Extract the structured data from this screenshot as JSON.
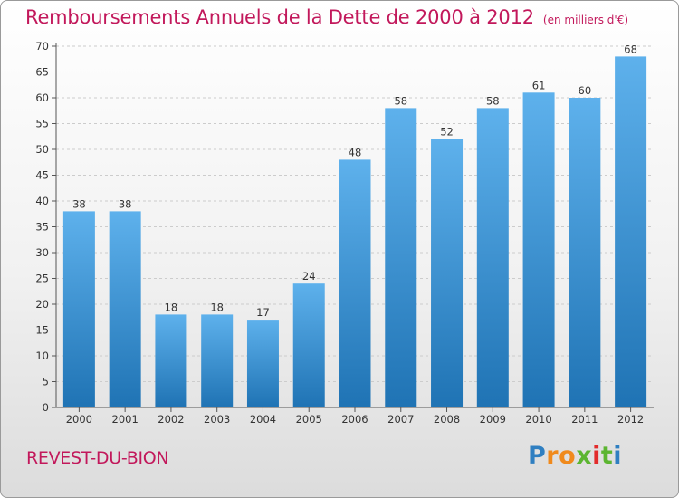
{
  "header": {
    "title": "Remboursements Annuels de la Dette de 2000 à 2012",
    "subtitle": "(en milliers d'€)"
  },
  "footer": {
    "commune": "REVEST-DU-BION",
    "logo_letters": [
      "P",
      "r",
      "o",
      "x",
      "i",
      "t",
      "i"
    ],
    "logo_colors": [
      "#2f7fc1",
      "#f08a1c",
      "#f08a1c",
      "#5cb531",
      "#e22b2b",
      "#5cb531",
      "#2f7fc1"
    ]
  },
  "colors": {
    "title": "#c2185b",
    "bar_top": "#5eb1ec",
    "bar_bottom": "#1f73b4",
    "grid": "#cccccc",
    "axis": "#555555"
  },
  "chart_data": {
    "type": "bar",
    "title": "Remboursements Annuels de la Dette de 2000 à 2012",
    "subtitle": "(en milliers d'€)",
    "categories": [
      "2000",
      "2001",
      "2002",
      "2003",
      "2004",
      "2005",
      "2006",
      "2007",
      "2008",
      "2009",
      "2010",
      "2011",
      "2012"
    ],
    "values": [
      38,
      38,
      18,
      18,
      17,
      24,
      48,
      58,
      52,
      58,
      61,
      60,
      68
    ],
    "ylim": [
      0,
      70
    ],
    "yticks": [
      0,
      5,
      10,
      15,
      20,
      25,
      30,
      35,
      40,
      45,
      50,
      55,
      60,
      65,
      70
    ],
    "grid": true,
    "data_labels": true
  }
}
